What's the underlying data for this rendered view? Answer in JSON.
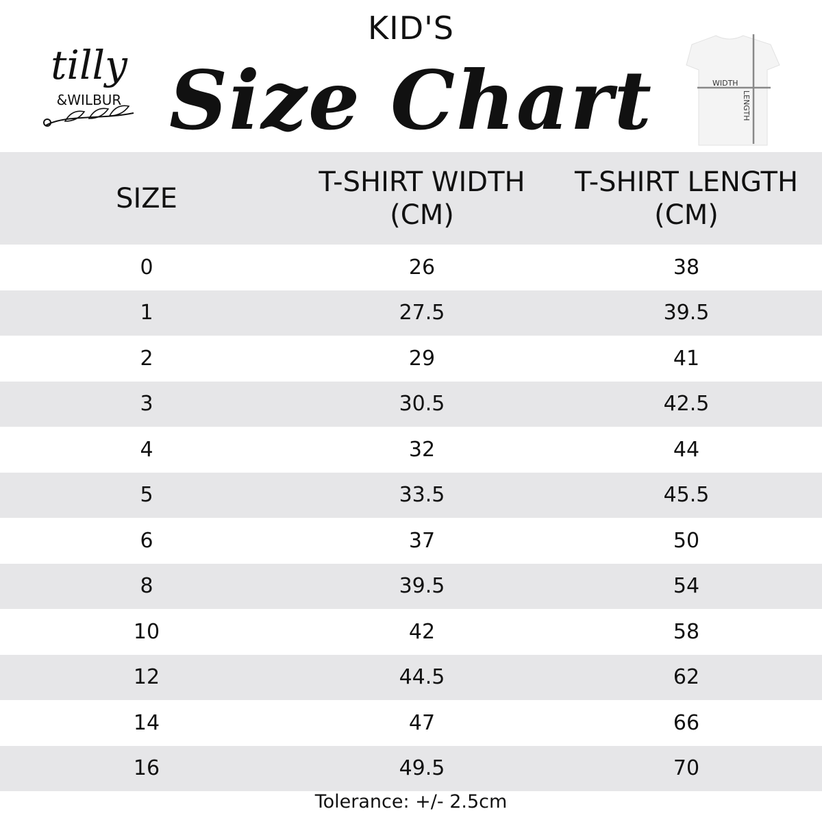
{
  "header": {
    "subtitle": "KID'S",
    "title": "Size Chart"
  },
  "logo": {
    "text1": "tilly",
    "text2": "&WILBUR"
  },
  "diagram": {
    "width_label": "WIDTH",
    "length_label": "LENGTH"
  },
  "table": {
    "columns": [
      "SIZE",
      "T-SHIRT WIDTH (CM)",
      "T-SHIRT LENGTH (CM)"
    ],
    "rows": [
      [
        "0",
        "26",
        "38"
      ],
      [
        "1",
        "27.5",
        "39.5"
      ],
      [
        "2",
        "29",
        "41"
      ],
      [
        "3",
        "30.5",
        "42.5"
      ],
      [
        "4",
        "32",
        "44"
      ],
      [
        "5",
        "33.5",
        "45.5"
      ],
      [
        "6",
        "37",
        "50"
      ],
      [
        "8",
        "39.5",
        "54"
      ],
      [
        "10",
        "42",
        "58"
      ],
      [
        "12",
        "44.5",
        "62"
      ],
      [
        "14",
        "47",
        "66"
      ],
      [
        "16",
        "49.5",
        "70"
      ]
    ]
  },
  "footer": {
    "tolerance": "Tolerance: +/- 2.5cm"
  },
  "colors": {
    "stripe": "#e6e6e8",
    "text": "#111111"
  }
}
